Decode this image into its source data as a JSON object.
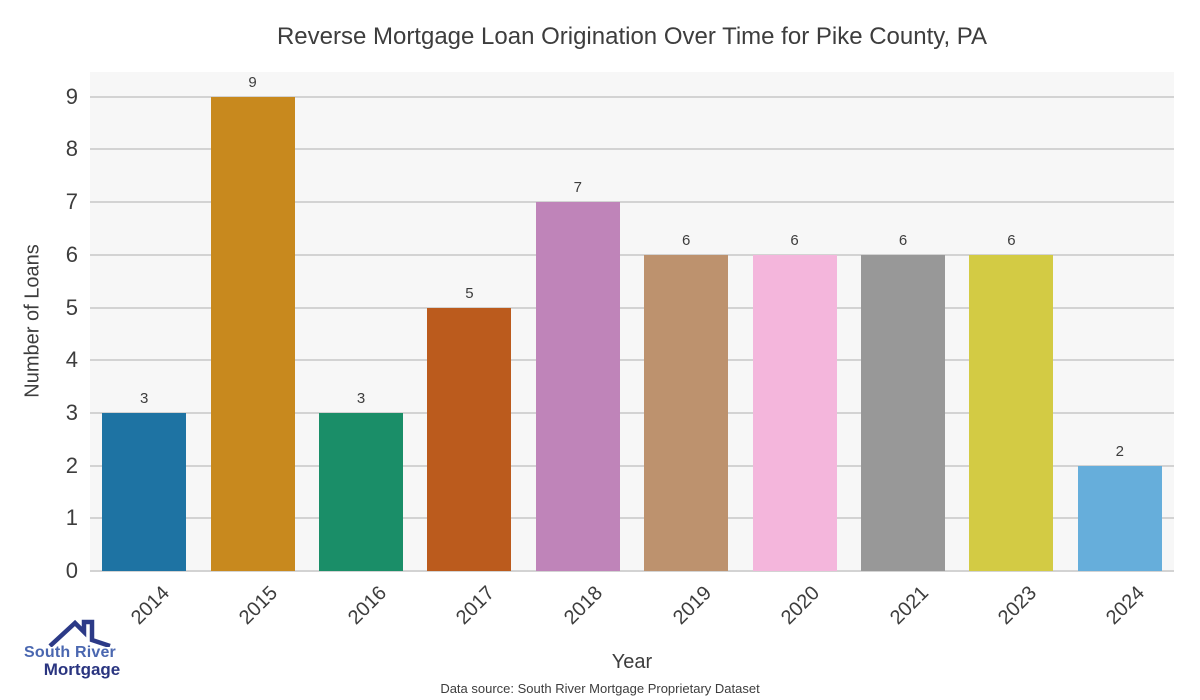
{
  "chart_data": {
    "type": "bar",
    "title": "Reverse Mortgage Loan Origination Over Time for Pike County, PA",
    "xlabel": "Year",
    "ylabel": "Number of Loans",
    "categories": [
      "2014",
      "2015",
      "2016",
      "2017",
      "2018",
      "2019",
      "2020",
      "2021",
      "2023",
      "2024"
    ],
    "values": [
      3,
      9,
      3,
      5,
      7,
      6,
      6,
      6,
      6,
      2
    ],
    "bar_colors": [
      "#1e73a3",
      "#c8891e",
      "#1a8e68",
      "#bb5b1d",
      "#bf84b9",
      "#bd926e",
      "#f4b6dc",
      "#989898",
      "#d3cb44",
      "#66aedb"
    ],
    "value_labels": [
      "3",
      "9",
      "3",
      "5",
      "7",
      "6",
      "6",
      "6",
      "6",
      "2"
    ],
    "yticks": [
      0,
      1,
      2,
      3,
      4,
      5,
      6,
      7,
      8,
      9
    ],
    "ylim": [
      0,
      9.47
    ],
    "grid": true,
    "legend_position": "none",
    "plot_bg_color": "#f7f7f7",
    "grid_color": "#d3d3d3",
    "text_color": "#3d3d3d",
    "x_tick_rotation_deg": 45
  },
  "footer": {
    "source_note": "Data source: South River Mortgage Proprietary Dataset",
    "logo": {
      "line1": "South River",
      "line2": "Mortgage",
      "line1_color": "#4a67b0",
      "line2_color": "#2a3580",
      "icon_color": "#2c3a87",
      "icon": "house-roof-icon"
    }
  }
}
